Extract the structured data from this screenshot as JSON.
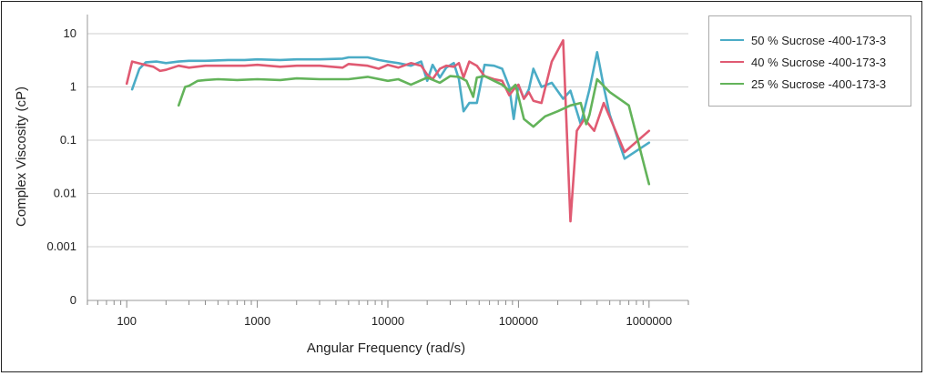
{
  "chart_data": {
    "type": "line",
    "xlabel": "Angular Frequency (rad/s)",
    "ylabel": "Complex Viscosity (cP)",
    "x_scale": "log",
    "y_scale": "log",
    "xlim": [
      50,
      2000000
    ],
    "x_ticks": [
      100,
      1000,
      10000,
      100000,
      1000000
    ],
    "x_tick_labels": [
      "100",
      "1000",
      "10000",
      "100000",
      "1000000"
    ],
    "y_ticks": [
      0,
      0.001,
      0.01,
      0.1,
      1,
      10
    ],
    "y_tick_labels": [
      "0",
      "0.001",
      "0.01",
      "0.1",
      "1",
      "10"
    ],
    "grid": true,
    "legend_position": "top-right",
    "series": [
      {
        "name": "50 % Sucrose -400-173-3",
        "color": "#4bacc6",
        "points": [
          [
            110,
            0.9
          ],
          [
            125,
            2.2
          ],
          [
            140,
            2.9
          ],
          [
            170,
            3.0
          ],
          [
            200,
            2.8
          ],
          [
            250,
            3.0
          ],
          [
            300,
            3.1
          ],
          [
            400,
            3.1
          ],
          [
            600,
            3.2
          ],
          [
            800,
            3.2
          ],
          [
            1000,
            3.3
          ],
          [
            1500,
            3.2
          ],
          [
            2000,
            3.3
          ],
          [
            3000,
            3.3
          ],
          [
            4500,
            3.4
          ],
          [
            5000,
            3.6
          ],
          [
            7000,
            3.6
          ],
          [
            8500,
            3.2
          ],
          [
            10000,
            3.0
          ],
          [
            12000,
            2.8
          ],
          [
            15000,
            2.5
          ],
          [
            18000,
            3.0
          ],
          [
            20000,
            1.3
          ],
          [
            22000,
            2.6
          ],
          [
            25000,
            1.5
          ],
          [
            28000,
            2.3
          ],
          [
            32000,
            2.8
          ],
          [
            35000,
            1.4
          ],
          [
            38000,
            0.35
          ],
          [
            42000,
            0.5
          ],
          [
            48000,
            0.5
          ],
          [
            55000,
            2.6
          ],
          [
            65000,
            2.5
          ],
          [
            75000,
            2.2
          ],
          [
            85000,
            1.0
          ],
          [
            92000,
            0.25
          ],
          [
            100000,
            1.1
          ],
          [
            110000,
            0.6
          ],
          [
            120000,
            0.9
          ],
          [
            130000,
            2.2
          ],
          [
            150000,
            1.0
          ],
          [
            180000,
            1.2
          ],
          [
            220000,
            0.6
          ],
          [
            250000,
            0.85
          ],
          [
            300000,
            0.2
          ],
          [
            350000,
            0.9
          ],
          [
            400000,
            4.5
          ],
          [
            450000,
            1.0
          ],
          [
            500000,
            0.3
          ],
          [
            650000,
            0.045
          ],
          [
            1000000,
            0.09
          ]
        ]
      },
      {
        "name": "40 % Sucrose -400-173-3",
        "color": "#e05a72",
        "points": [
          [
            100,
            1.15
          ],
          [
            110,
            3.0
          ],
          [
            130,
            2.7
          ],
          [
            160,
            2.4
          ],
          [
            180,
            2.0
          ],
          [
            200,
            2.1
          ],
          [
            250,
            2.5
          ],
          [
            300,
            2.3
          ],
          [
            400,
            2.5
          ],
          [
            600,
            2.5
          ],
          [
            800,
            2.5
          ],
          [
            1000,
            2.6
          ],
          [
            1500,
            2.4
          ],
          [
            2000,
            2.5
          ],
          [
            3000,
            2.5
          ],
          [
            4500,
            2.3
          ],
          [
            5000,
            2.7
          ],
          [
            7000,
            2.5
          ],
          [
            8500,
            2.2
          ],
          [
            10000,
            2.6
          ],
          [
            12000,
            2.3
          ],
          [
            15000,
            2.8
          ],
          [
            18000,
            2.5
          ],
          [
            20000,
            1.7
          ],
          [
            22000,
            1.4
          ],
          [
            25000,
            2.2
          ],
          [
            28000,
            2.5
          ],
          [
            32000,
            2.4
          ],
          [
            35000,
            2.8
          ],
          [
            38000,
            1.5
          ],
          [
            42000,
            3.0
          ],
          [
            48000,
            2.5
          ],
          [
            55000,
            1.6
          ],
          [
            65000,
            1.4
          ],
          [
            75000,
            1.3
          ],
          [
            85000,
            0.7
          ],
          [
            92000,
            0.9
          ],
          [
            100000,
            1.1
          ],
          [
            110000,
            0.6
          ],
          [
            120000,
            0.8
          ],
          [
            130000,
            0.55
          ],
          [
            150000,
            0.5
          ],
          [
            180000,
            3.0
          ],
          [
            220000,
            7.5
          ],
          [
            250000,
            0.003
          ],
          [
            280000,
            0.15
          ],
          [
            320000,
            0.25
          ],
          [
            380000,
            0.15
          ],
          [
            450000,
            0.5
          ],
          [
            650000,
            0.06
          ],
          [
            1000000,
            0.15
          ]
        ]
      },
      {
        "name": "25 % Sucrose -400-173-3",
        "color": "#63b35a",
        "points": [
          [
            250,
            0.45
          ],
          [
            280,
            1.0
          ],
          [
            300,
            1.05
          ],
          [
            350,
            1.3
          ],
          [
            400,
            1.35
          ],
          [
            500,
            1.4
          ],
          [
            700,
            1.35
          ],
          [
            1000,
            1.4
          ],
          [
            1500,
            1.35
          ],
          [
            2000,
            1.45
          ],
          [
            3000,
            1.4
          ],
          [
            5000,
            1.4
          ],
          [
            7000,
            1.55
          ],
          [
            10000,
            1.3
          ],
          [
            12000,
            1.4
          ],
          [
            15000,
            1.1
          ],
          [
            20000,
            1.5
          ],
          [
            25000,
            1.2
          ],
          [
            30000,
            1.6
          ],
          [
            35000,
            1.55
          ],
          [
            40000,
            1.3
          ],
          [
            45000,
            0.65
          ],
          [
            48000,
            1.5
          ],
          [
            55000,
            1.6
          ],
          [
            65000,
            1.3
          ],
          [
            75000,
            1.1
          ],
          [
            85000,
            0.85
          ],
          [
            95000,
            1.1
          ],
          [
            110000,
            0.25
          ],
          [
            130000,
            0.18
          ],
          [
            160000,
            0.28
          ],
          [
            200000,
            0.35
          ],
          [
            250000,
            0.45
          ],
          [
            300000,
            0.5
          ],
          [
            330000,
            0.2
          ],
          [
            350000,
            0.3
          ],
          [
            400000,
            1.4
          ],
          [
            500000,
            0.8
          ],
          [
            700000,
            0.45
          ],
          [
            1000000,
            0.015
          ]
        ]
      }
    ]
  }
}
